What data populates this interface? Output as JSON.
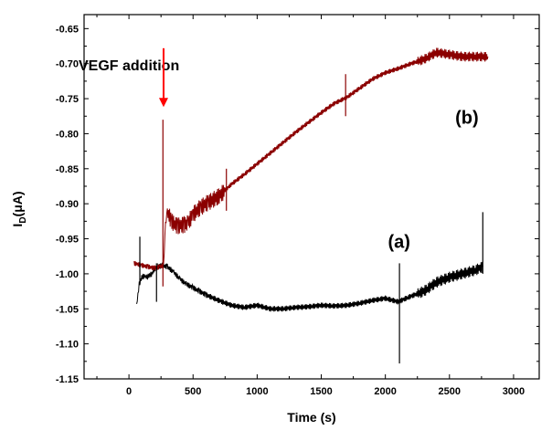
{
  "chart_data": {
    "type": "line",
    "title": "",
    "xlabel": "Time (s)",
    "ylabel_main": "I",
    "ylabel_sub": "D",
    "ylabel_unit": "(μA)",
    "xlim": [
      -350,
      3200
    ],
    "ylim": [
      -1.15,
      -0.63
    ],
    "x_ticks": [
      0,
      500,
      1000,
      1500,
      2000,
      2500,
      3000
    ],
    "y_ticks": [
      -0.65,
      -0.7,
      -0.75,
      -0.8,
      -0.85,
      -0.9,
      -0.95,
      -1.0,
      -1.05,
      -1.1,
      -1.15
    ],
    "grid": false,
    "annotation": {
      "text": "VEGF addition",
      "arrow_x": 270,
      "arrow_from_y": -0.678,
      "arrow_to_y": -0.762,
      "arrow_color": "#ff0000"
    },
    "series": [
      {
        "name": "(a)",
        "color": "#000000",
        "label_x": 2020,
        "label_y": -0.963,
        "x": [
          60,
          80,
          100,
          120,
          140,
          160,
          180,
          200,
          230,
          260,
          300,
          350,
          400,
          450,
          500,
          550,
          600,
          700,
          800,
          900,
          1000,
          1100,
          1200,
          1300,
          1400,
          1500,
          1600,
          1700,
          1800,
          1900,
          2000,
          2100,
          2200,
          2300,
          2400,
          2500,
          2600,
          2700,
          2760
        ],
        "y": [
          -1.045,
          -1.015,
          -1.005,
          -1.003,
          -1.005,
          -1.002,
          -1.0,
          -0.993,
          -0.99,
          -0.988,
          -0.99,
          -0.998,
          -1.008,
          -1.015,
          -1.02,
          -1.025,
          -1.03,
          -1.038,
          -1.045,
          -1.048,
          -1.045,
          -1.05,
          -1.05,
          -1.048,
          -1.047,
          -1.045,
          -1.046,
          -1.045,
          -1.042,
          -1.038,
          -1.035,
          -1.04,
          -1.032,
          -1.025,
          -1.012,
          -1.005,
          -1.0,
          -0.995,
          -0.99
        ]
      },
      {
        "name": "(b)",
        "color": "#8b0000",
        "label_x": 2545,
        "label_y": -0.786,
        "x": [
          40,
          100,
          150,
          200,
          240,
          270,
          285,
          300,
          330,
          380,
          430,
          460,
          500,
          560,
          620,
          700,
          800,
          900,
          1000,
          1100,
          1200,
          1300,
          1400,
          1500,
          1600,
          1700,
          1800,
          1900,
          2000,
          2100,
          2200,
          2300,
          2400,
          2500,
          2600,
          2700,
          2800
        ],
        "y": [
          -0.985,
          -0.988,
          -0.99,
          -0.992,
          -0.99,
          -0.988,
          -0.93,
          -0.91,
          -0.925,
          -0.932,
          -0.93,
          -0.928,
          -0.915,
          -0.905,
          -0.898,
          -0.89,
          -0.872,
          -0.858,
          -0.843,
          -0.828,
          -0.813,
          -0.798,
          -0.784,
          -0.77,
          -0.757,
          -0.748,
          -0.735,
          -0.722,
          -0.713,
          -0.707,
          -0.7,
          -0.694,
          -0.684,
          -0.687,
          -0.69,
          -0.69,
          -0.69
        ]
      }
    ],
    "spikes": [
      {
        "series": 0,
        "x": 85,
        "y_top": -0.947,
        "y_bottom": -1.015
      },
      {
        "series": 0,
        "x": 215,
        "y_top": -0.985,
        "y_bottom": -1.04
      },
      {
        "series": 0,
        "x": 2110,
        "y_top": -0.985,
        "y_bottom": -1.128
      },
      {
        "series": 0,
        "x": 2760,
        "y_top": -0.912,
        "y_bottom": -1.0
      },
      {
        "series": 1,
        "x": 265,
        "y_top": -0.78,
        "y_bottom": -1.018
      },
      {
        "series": 1,
        "x": 760,
        "y_top": -0.85,
        "y_bottom": -0.91
      },
      {
        "series": 1,
        "x": 1690,
        "y_top": -0.715,
        "y_bottom": -0.775
      }
    ]
  }
}
